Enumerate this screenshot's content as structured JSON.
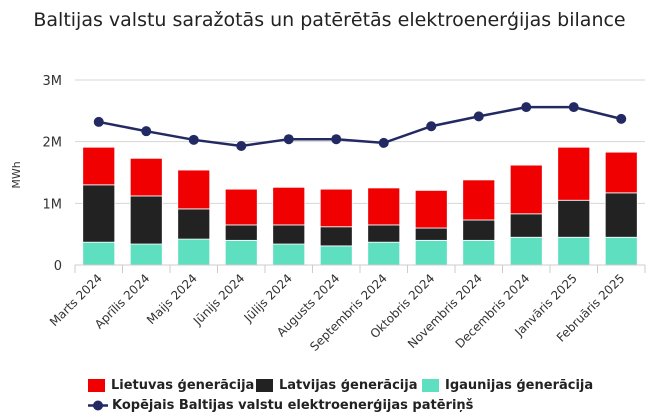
{
  "chart_data": {
    "type": "bar",
    "stacked": true,
    "title": "Baltijas valstu saražotās un patērētās elektroenerģijas bilance",
    "ylabel": "MWh",
    "ylim": [
      0,
      3000000
    ],
    "yticks": [
      "0",
      "1M",
      "2M",
      "3M"
    ],
    "grid": true,
    "legend_position": "bottom",
    "categories": [
      "Marts 2024",
      "Aprīlis 2024",
      "Maijs 2024",
      "Jūnijs 2024",
      "Jūlijs 2024",
      "Augusts 2024",
      "Septembris 2024",
      "Oktobris 2024",
      "Novembris 2024",
      "Decembris 2024",
      "Janvāris 2025",
      "Februāris 2025"
    ],
    "series": [
      {
        "name": "Igaunijas ģenerācija",
        "type": "bar",
        "color": "#5ddfc0",
        "values": [
          370000,
          340000,
          420000,
          400000,
          340000,
          310000,
          370000,
          400000,
          400000,
          450000,
          450000,
          450000
        ]
      },
      {
        "name": "Latvijas ģenerācija",
        "type": "bar",
        "color": "#222222",
        "values": [
          930000,
          780000,
          490000,
          250000,
          310000,
          310000,
          280000,
          200000,
          330000,
          380000,
          600000,
          720000
        ]
      },
      {
        "name": "Lietuvas ģenerācija",
        "type": "bar",
        "color": "#f00000",
        "values": [
          610000,
          610000,
          630000,
          580000,
          610000,
          610000,
          600000,
          610000,
          650000,
          790000,
          860000,
          660000
        ]
      },
      {
        "name": "Kopējais Baltijas valstu elektroenerģijas patēriņš",
        "type": "line",
        "color": "#232a63",
        "values": [
          2320000,
          2170000,
          2030000,
          1930000,
          2040000,
          2040000,
          1980000,
          2250000,
          2410000,
          2560000,
          2560000,
          2370000
        ]
      }
    ]
  }
}
